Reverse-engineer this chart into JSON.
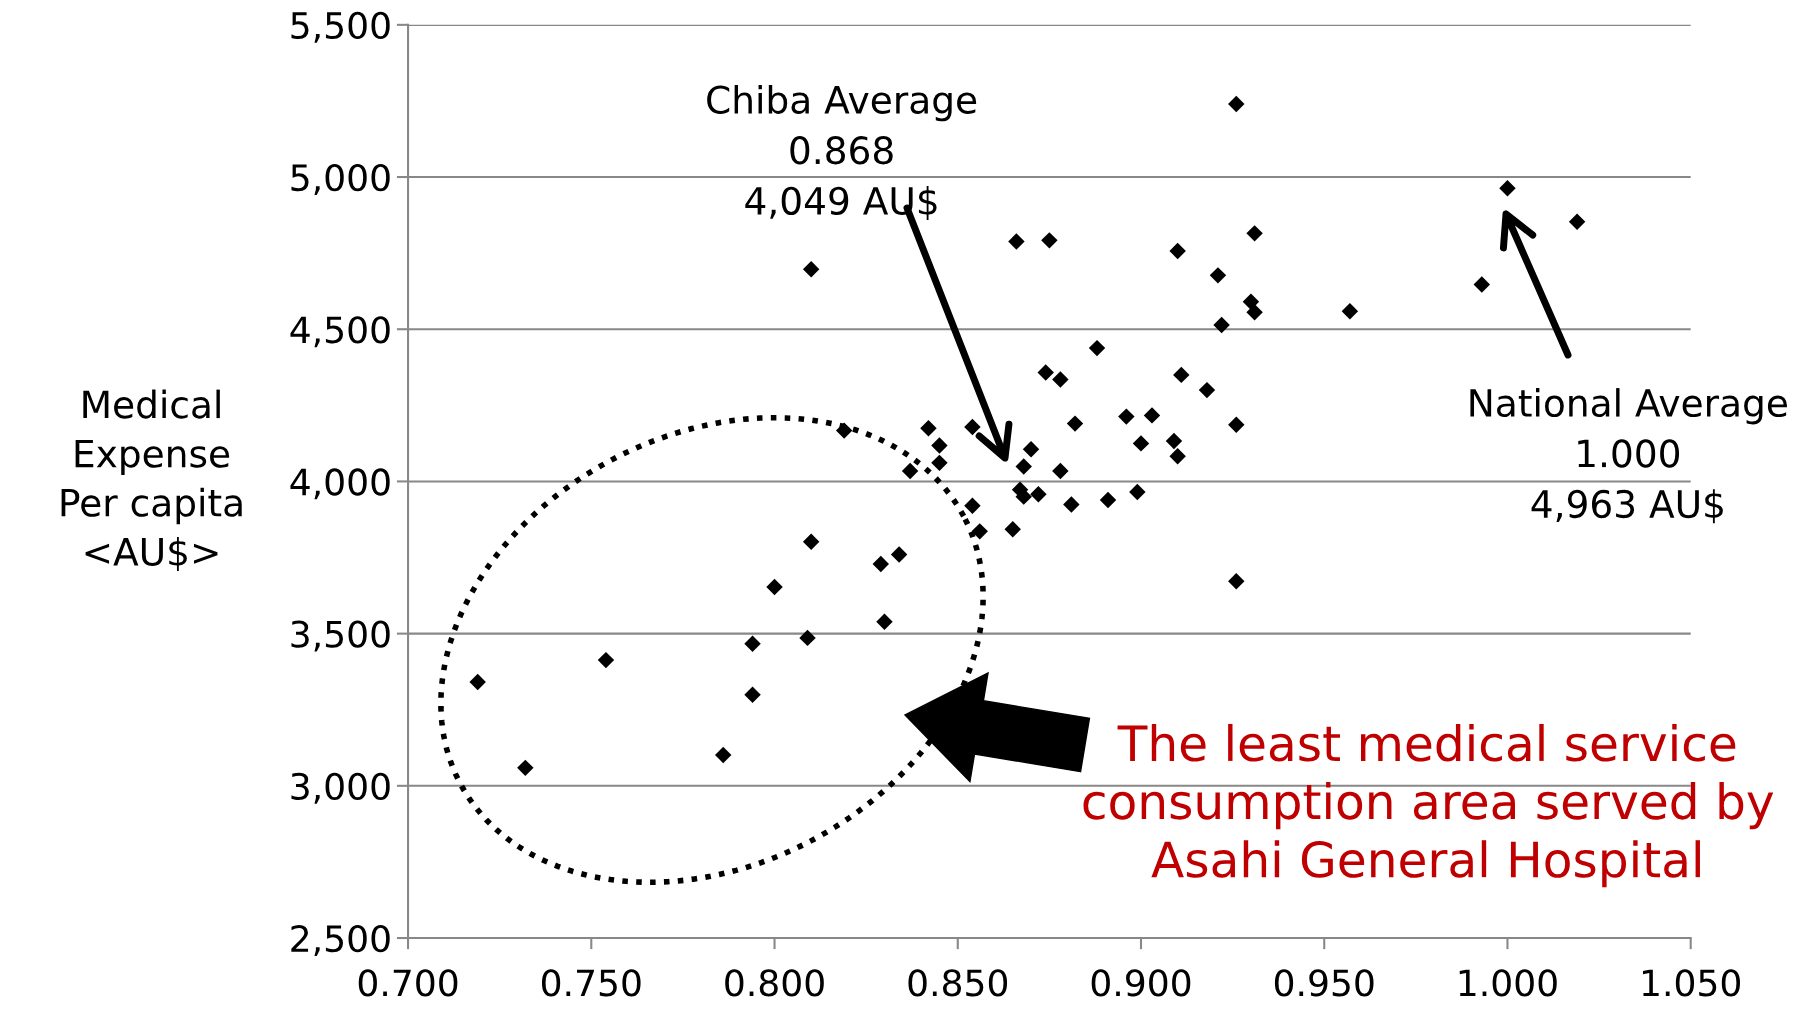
{
  "chart_data": {
    "type": "scatter",
    "ylabel": "Medical\nExpense\nPer capita\n<AU$>",
    "x": [
      0.926,
      1.0,
      1.019,
      0.993,
      0.957,
      0.931,
      0.91,
      0.921,
      0.93,
      0.931,
      0.922,
      0.81,
      0.866,
      0.875,
      0.888,
      0.874,
      0.878,
      0.911,
      0.918,
      0.896,
      0.903,
      0.882,
      0.926,
      0.819,
      0.842,
      0.854,
      0.845,
      0.87,
      0.9,
      0.909,
      0.91,
      0.845,
      0.868,
      0.878,
      0.837,
      0.867,
      0.868,
      0.872,
      0.854,
      0.881,
      0.891,
      0.899,
      0.856,
      0.865,
      0.926,
      0.81,
      0.8,
      0.834,
      0.829,
      0.83,
      0.809,
      0.794,
      0.794,
      0.786,
      0.754,
      0.719,
      0.732
    ],
    "values": [
      5240,
      4963,
      4853,
      4647,
      4559,
      4815,
      4757,
      4677,
      4590,
      4556,
      4514,
      4697,
      4788,
      4792,
      4438,
      4358,
      4335,
      4350,
      4300,
      4213,
      4217,
      4190,
      4186,
      4167,
      4175,
      4179,
      4118,
      4106,
      4125,
      4133,
      4083,
      4061,
      4049,
      4034,
      4034,
      3973,
      3950,
      3958,
      3920,
      3924,
      3939,
      3965,
      3836,
      3843,
      3672,
      3802,
      3653,
      3760,
      3729,
      3539,
      3486,
      3467,
      3299,
      3101,
      3413,
      3341,
      3059
    ],
    "color": "#000000",
    "marker": "diamond",
    "xlim": [
      0.7,
      1.05
    ],
    "xticks": [
      {
        "value": 0.7,
        "label": "0.700"
      },
      {
        "value": 0.75,
        "label": "0.750"
      },
      {
        "value": 0.8,
        "label": "0.800"
      },
      {
        "value": 0.85,
        "label": "0.850"
      },
      {
        "value": 0.9,
        "label": "0.900"
      },
      {
        "value": 0.95,
        "label": "0.950"
      },
      {
        "value": 1.0,
        "label": "1.000"
      },
      {
        "value": 1.05,
        "label": "1.050"
      }
    ],
    "ylim": [
      2500,
      5500
    ],
    "yticks": [
      {
        "value": 2500,
        "label": "2,500"
      },
      {
        "value": 3000,
        "label": "3,000"
      },
      {
        "value": 3500,
        "label": "3,500"
      },
      {
        "value": 4000,
        "label": "4,000"
      },
      {
        "value": 4500,
        "label": "4,500"
      },
      {
        "value": 5000,
        "label": "5,000"
      },
      {
        "value": 5500,
        "label": "5,500"
      }
    ],
    "grid": "y",
    "annotations": [
      "Chiba Average\n0.868\n4,049 AU$",
      "National Average\n1.000\n4,963 AU$",
      "The least medical service\nconsumption area served by\nAsahi General Hospital"
    ]
  }
}
